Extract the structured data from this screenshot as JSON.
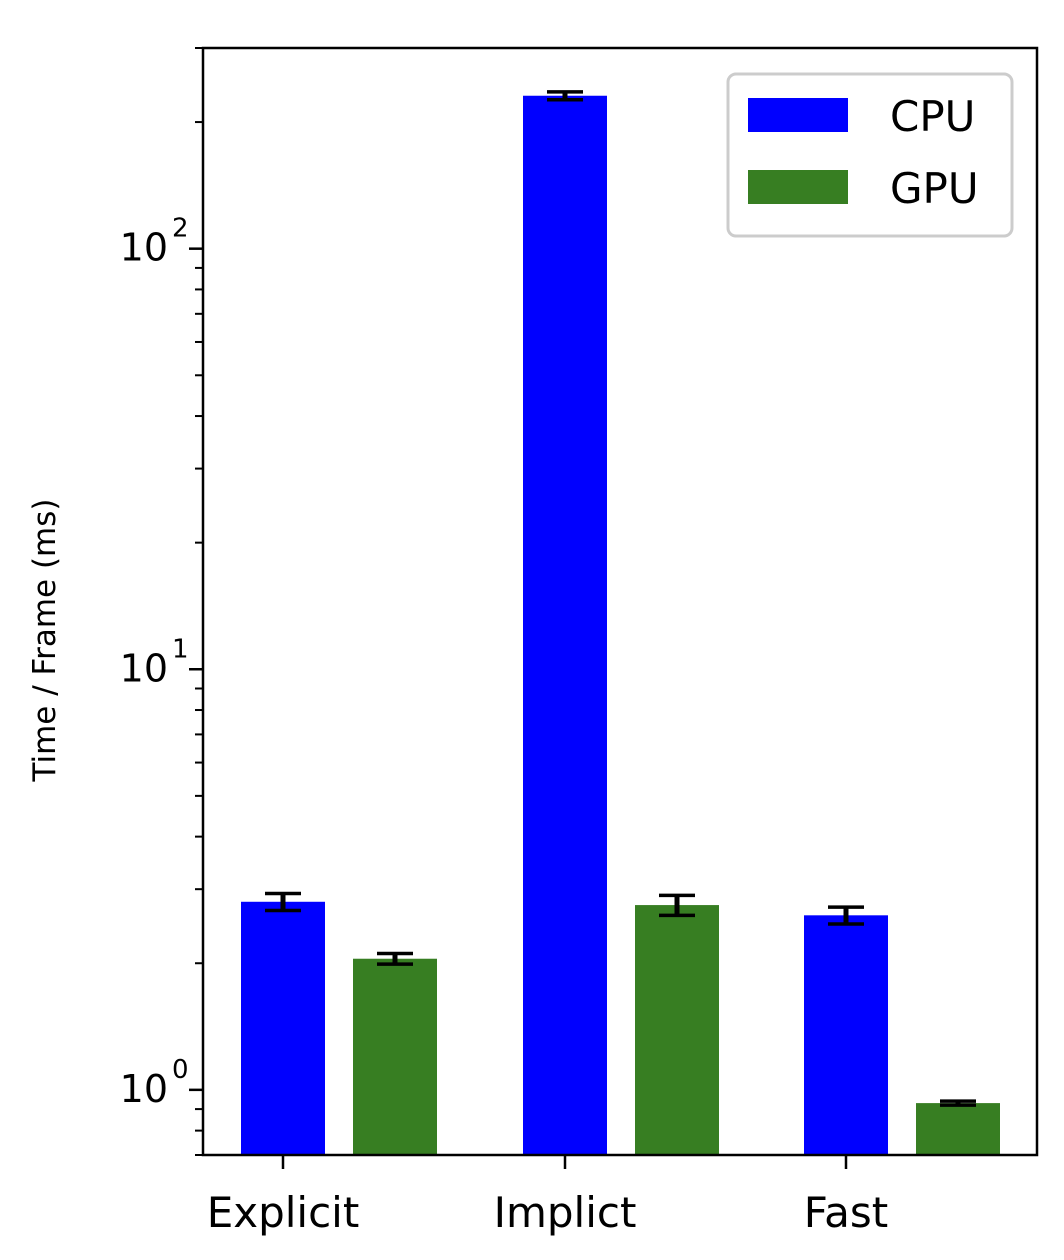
{
  "chart_data": {
    "type": "bar",
    "title": "",
    "xlabel": "",
    "ylabel": "Time / Frame (ms)",
    "yscale": "log",
    "ylim": [
      0.7,
      300
    ],
    "grid": false,
    "legend_position": "top-right",
    "categories": [
      "Explicit",
      "Implict",
      "Fast"
    ],
    "yticks": [
      {
        "value": 1,
        "base": "10",
        "exp": "0"
      },
      {
        "value": 10,
        "base": "10",
        "exp": "1"
      },
      {
        "value": 100,
        "base": "10",
        "exp": "2"
      }
    ],
    "series": [
      {
        "name": "CPU",
        "color": "#0000ff",
        "values": [
          2.8,
          231,
          2.6
        ],
        "errors": [
          0.13,
          5,
          0.12
        ]
      },
      {
        "name": "GPU",
        "color": "#377e22",
        "values": [
          2.05,
          2.75,
          0.93
        ],
        "errors": [
          0.06,
          0.15,
          0.01
        ]
      }
    ]
  }
}
